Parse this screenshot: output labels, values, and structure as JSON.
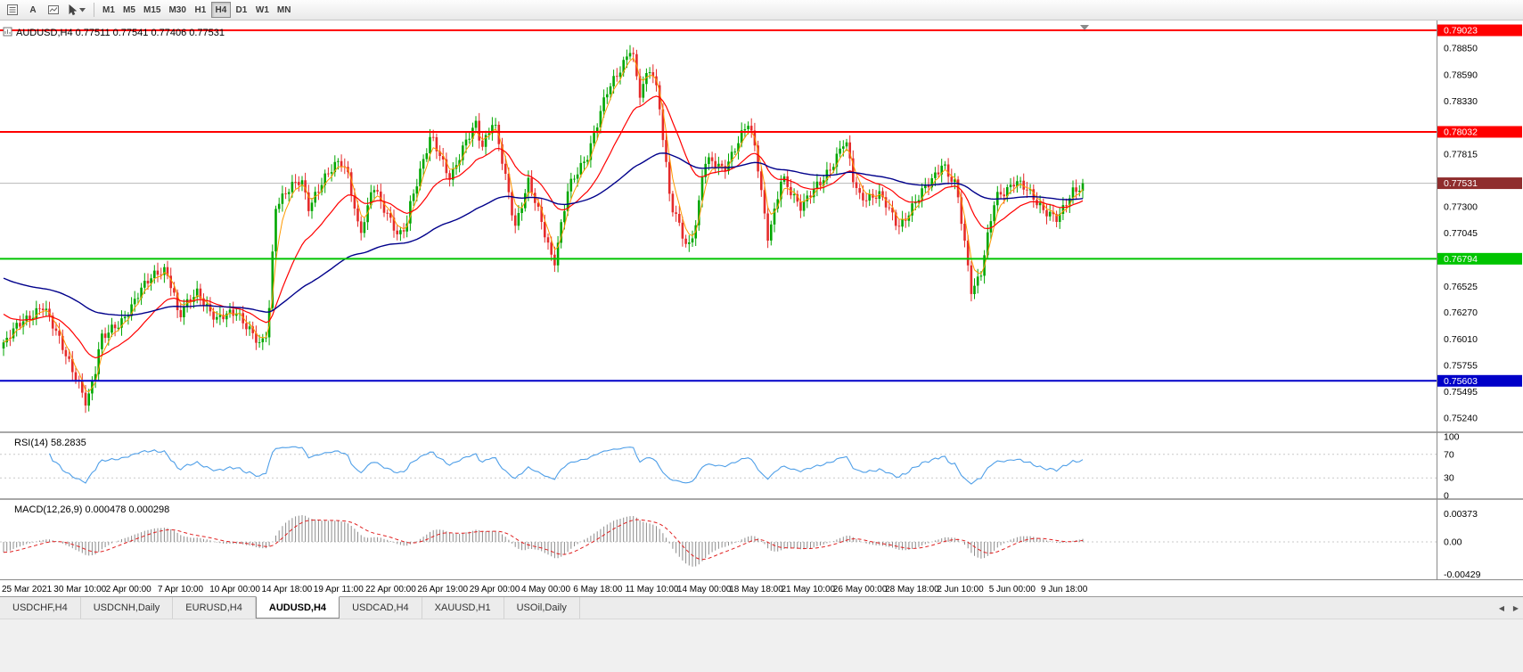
{
  "toolbar": {
    "text_tool_label": "A",
    "timeframes": [
      "M1",
      "M5",
      "M15",
      "M30",
      "H1",
      "H4",
      "D1",
      "W1",
      "MN"
    ],
    "active_timeframe": "H4"
  },
  "tabs": {
    "items": [
      "USDCHF,H4",
      "USDCNH,Daily",
      "EURUSD,H4",
      "AUDUSD,H4",
      "USDCAD,H4",
      "XAUUSD,H1",
      "USOil,Daily"
    ],
    "active": "AUDUSD,H4",
    "scroll_left_icon": "◀",
    "scroll_right_icon": "▶"
  },
  "chart_data": {
    "type": "candlestick",
    "symbol": "AUDUSD",
    "period": "H4",
    "title": "AUDUSD,H4 0.77511 0.77541 0.77406 0.77531",
    "ohlc_current": {
      "open": 0.77511,
      "high": 0.77541,
      "low": 0.77406,
      "close": 0.77531
    },
    "bars": 330,
    "price_scale_labels": [
      "0.78850",
      "0.78590",
      "0.78330",
      "0.77815",
      "0.77300",
      "0.77045",
      "0.76525",
      "0.76270",
      "0.76010",
      "0.75755",
      "0.75495",
      "0.75240"
    ],
    "hlines": [
      {
        "name": "resistance-line-upper",
        "price": 0.79023,
        "label": "0.79023",
        "color": "#ff0000"
      },
      {
        "name": "resistance-line-mid",
        "price": 0.78032,
        "label": "0.78032",
        "color": "#ff0000"
      },
      {
        "name": "support-line-green",
        "price": 0.76794,
        "label": "0.76794",
        "color": "#00c400"
      },
      {
        "name": "support-line-blue",
        "price": 0.75603,
        "label": "0.75603",
        "color": "#0000c8"
      }
    ],
    "bid_line": {
      "price": 0.77531,
      "label": "0.77531",
      "line_color": "#b8b8b8",
      "tag_color": "#8f2d2d"
    },
    "style": {
      "up": "#00a700",
      "down": "#e52b2b",
      "ma_fast": "#ff9900",
      "ma_mid": "#ff0000",
      "ma_slow": "#00008b"
    },
    "indicators": {
      "rsi": {
        "label": "RSI(14) 58.2835",
        "period": 14,
        "value": 58.2835,
        "levels": [
          "100",
          "70",
          "30",
          "0"
        ],
        "line_color": "#4f9fe8"
      },
      "macd": {
        "label": "MACD(12,26,9) 0.000478 0.000298",
        "fast": 12,
        "slow": 26,
        "signal": 9,
        "values": [
          "0.000478",
          "0.000298"
        ],
        "scale_labels": [
          "0.00373",
          "0.00",
          "-0.00429"
        ],
        "histogram_color": "#8c8c8c",
        "signal_color": "#e02020"
      }
    },
    "time_labels": [
      "25 Mar 2021",
      "30 Mar 10:00",
      "2 Apr 00:00",
      "7 Apr 10:00",
      "10 Apr 00:00",
      "14 Apr 18:00",
      "19 Apr 11:00",
      "22 Apr 00:00",
      "26 Apr 19:00",
      "29 Apr 00:00",
      "4 May 00:00",
      "6 May 18:00",
      "11 May 10:00",
      "14 May 00:00",
      "18 May 18:00",
      "21 May 10:00",
      "26 May 00:00",
      "28 May 18:00",
      "2 Jun 10:00",
      "5 Jun 00:00",
      "9 Jun 18:00"
    ],
    "close_anchors": [
      [
        0.0,
        0.7595
      ],
      [
        0.018,
        0.762
      ],
      [
        0.036,
        0.7632
      ],
      [
        0.054,
        0.7598
      ],
      [
        0.077,
        0.7535
      ],
      [
        0.085,
        0.7572
      ],
      [
        0.09,
        0.7605
      ],
      [
        0.108,
        0.7613
      ],
      [
        0.126,
        0.765
      ],
      [
        0.15,
        0.767
      ],
      [
        0.157,
        0.7652
      ],
      [
        0.162,
        0.7622
      ],
      [
        0.18,
        0.7648
      ],
      [
        0.198,
        0.7618
      ],
      [
        0.216,
        0.763
      ],
      [
        0.238,
        0.7592
      ],
      [
        0.245,
        0.7612
      ],
      [
        0.252,
        0.7733
      ],
      [
        0.276,
        0.7757
      ],
      [
        0.283,
        0.7731
      ],
      [
        0.288,
        0.7741
      ],
      [
        0.312,
        0.7778
      ],
      [
        0.319,
        0.7764
      ],
      [
        0.33,
        0.77
      ],
      [
        0.337,
        0.7724
      ],
      [
        0.342,
        0.7755
      ],
      [
        0.366,
        0.7698
      ],
      [
        0.373,
        0.7712
      ],
      [
        0.378,
        0.774
      ],
      [
        0.396,
        0.7797
      ],
      [
        0.414,
        0.776
      ],
      [
        0.438,
        0.7812
      ],
      [
        0.443,
        0.779
      ],
      [
        0.454,
        0.7815
      ],
      [
        0.463,
        0.7768
      ],
      [
        0.474,
        0.7712
      ],
      [
        0.486,
        0.7755
      ],
      [
        0.51,
        0.7676
      ],
      [
        0.517,
        0.7714
      ],
      [
        0.523,
        0.7745
      ],
      [
        0.541,
        0.7782
      ],
      [
        0.559,
        0.784
      ],
      [
        0.582,
        0.7888
      ],
      [
        0.589,
        0.7836
      ],
      [
        0.6,
        0.7868
      ],
      [
        0.607,
        0.7838
      ],
      [
        0.618,
        0.7732
      ],
      [
        0.634,
        0.7689
      ],
      [
        0.643,
        0.7722
      ],
      [
        0.649,
        0.7774
      ],
      [
        0.667,
        0.7768
      ],
      [
        0.69,
        0.781
      ],
      [
        0.697,
        0.7786
      ],
      [
        0.708,
        0.7702
      ],
      [
        0.715,
        0.7726
      ],
      [
        0.721,
        0.7757
      ],
      [
        0.739,
        0.7732
      ],
      [
        0.757,
        0.7752
      ],
      [
        0.78,
        0.7796
      ],
      [
        0.787,
        0.7756
      ],
      [
        0.793,
        0.774
      ],
      [
        0.811,
        0.7742
      ],
      [
        0.829,
        0.7712
      ],
      [
        0.847,
        0.7736
      ],
      [
        0.87,
        0.7774
      ],
      [
        0.877,
        0.7757
      ],
      [
        0.883,
        0.7748
      ],
      [
        0.897,
        0.7649
      ],
      [
        0.906,
        0.7667
      ],
      [
        0.919,
        0.7738
      ],
      [
        0.937,
        0.7756
      ],
      [
        0.955,
        0.7738
      ],
      [
        0.977,
        0.7716
      ],
      [
        0.984,
        0.7731
      ],
      [
        0.991,
        0.7747
      ],
      [
        1.0,
        0.77531
      ]
    ]
  }
}
